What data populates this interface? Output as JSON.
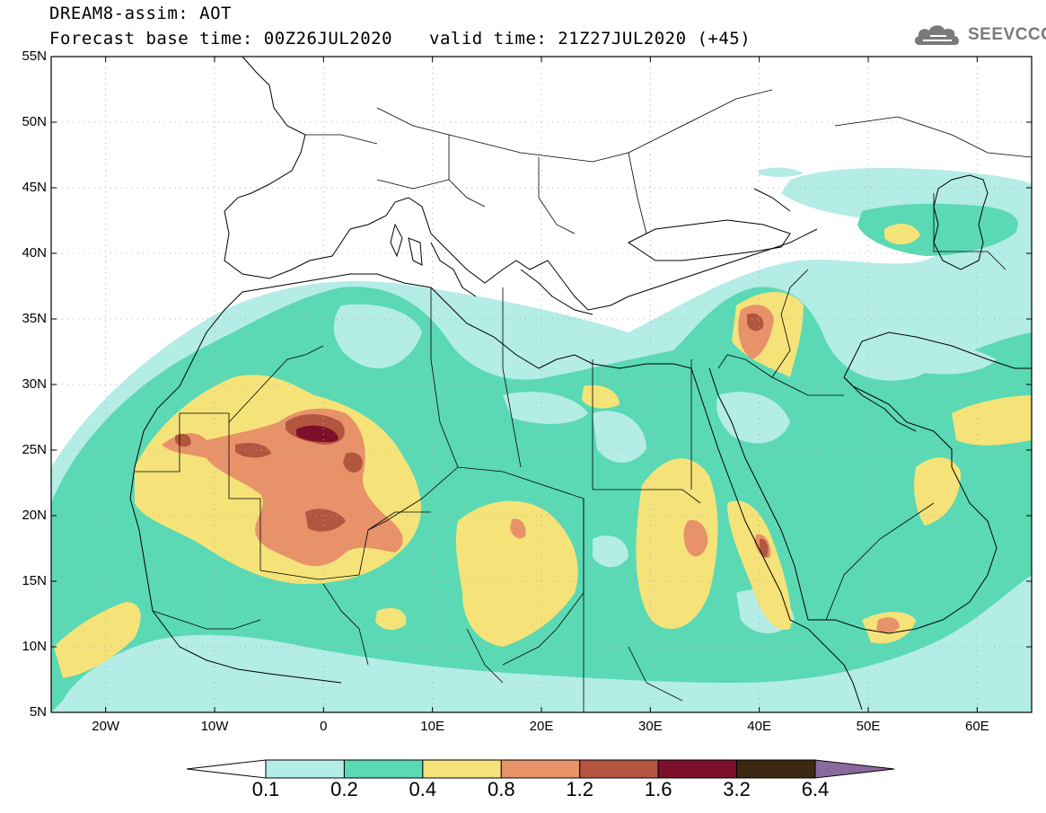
{
  "header": {
    "title": "DREAM8-assim: AOT",
    "base_time": "Forecast base time: 00Z26JUL2020",
    "valid_time": "valid time: 21Z27JUL2020 (+45)",
    "logo_text": "SEEVCCC",
    "logo_icon": "cloud-icon"
  },
  "map": {
    "lat_labels": [
      "55N",
      "50N",
      "45N",
      "40N",
      "35N",
      "30N",
      "25N",
      "20N",
      "15N",
      "10N",
      "5N"
    ],
    "lon_labels": [
      "20W",
      "10W",
      "0",
      "10E",
      "20E",
      "30E",
      "40E",
      "50E",
      "60E"
    ],
    "extent": {
      "lon_min": -25,
      "lon_max": 65,
      "lat_min": 5,
      "lat_max": 55
    },
    "grid": true
  },
  "colorbar": {
    "labels": [
      "0.1",
      "0.2",
      "0.4",
      "0.8",
      "1.2",
      "1.6",
      "3.2",
      "6.4"
    ],
    "colors": [
      "#ffffff",
      "#b4ece6",
      "#5ad9b4",
      "#f5e37a",
      "#e8926a",
      "#b4553f",
      "#7d0f2a",
      "#3c2812",
      "#8a6a9e"
    ]
  }
}
